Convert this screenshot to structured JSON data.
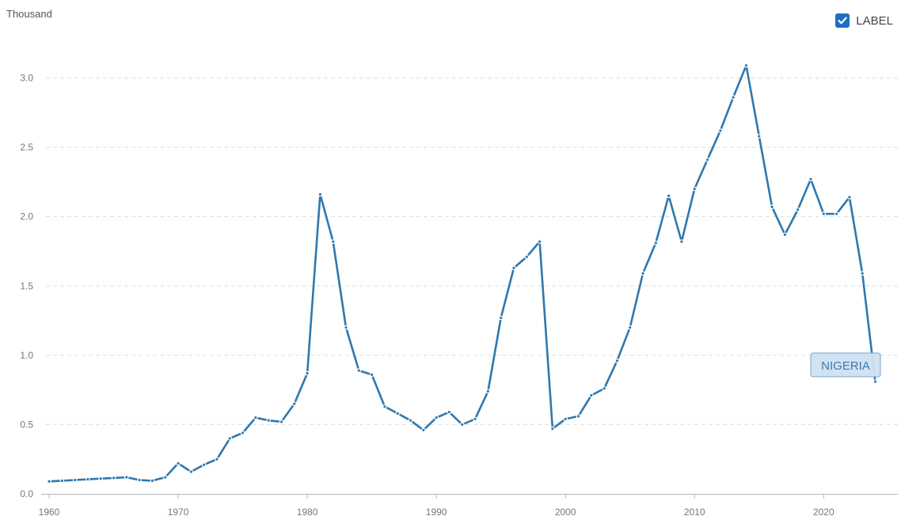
{
  "chart_data": {
    "type": "line",
    "ylabel": "Thousand",
    "ylim": [
      0,
      3.25
    ],
    "xlim": [
      1960,
      2025.5
    ],
    "yticks": [
      "0.0",
      "0.5",
      "1.0",
      "1.5",
      "2.0",
      "2.5",
      "3.0"
    ],
    "xticks": [
      "1960",
      "1970",
      "1980",
      "1990",
      "2000",
      "2010",
      "2020"
    ],
    "grid": "horizontal-dashed",
    "series": [
      {
        "name": "NIGERIA",
        "color": "#2f78ae",
        "x": [
          1960,
          1961,
          1962,
          1963,
          1964,
          1965,
          1966,
          1967,
          1968,
          1969,
          1970,
          1971,
          1972,
          1973,
          1974,
          1975,
          1976,
          1977,
          1978,
          1979,
          1980,
          1981,
          1982,
          1983,
          1984,
          1985,
          1986,
          1987,
          1988,
          1989,
          1990,
          1991,
          1992,
          1993,
          1994,
          1995,
          1996,
          1997,
          1998,
          1999,
          2000,
          2001,
          2002,
          2003,
          2004,
          2005,
          2006,
          2007,
          2008,
          2009,
          2010,
          2011,
          2012,
          2013,
          2014,
          2015,
          2016,
          2017,
          2018,
          2019,
          2020,
          2021,
          2022,
          2023,
          2024
        ],
        "y": [
          0.09,
          0.095,
          0.1,
          0.105,
          0.11,
          0.115,
          0.12,
          0.1,
          0.095,
          0.12,
          0.22,
          0.16,
          0.21,
          0.25,
          0.4,
          0.44,
          0.55,
          0.53,
          0.52,
          0.65,
          0.87,
          2.16,
          1.82,
          1.2,
          0.89,
          0.86,
          0.63,
          0.58,
          0.53,
          0.46,
          0.55,
          0.59,
          0.5,
          0.54,
          0.74,
          1.27,
          1.63,
          1.71,
          1.82,
          0.47,
          0.54,
          0.56,
          0.71,
          0.76,
          0.96,
          1.2,
          1.59,
          1.81,
          2.15,
          1.82,
          2.2,
          2.41,
          2.62,
          2.86,
          3.09,
          2.58,
          2.07,
          1.87,
          2.05,
          2.27,
          2.02,
          2.02,
          2.14,
          1.59,
          0.81
        ]
      }
    ]
  },
  "legend": {
    "label": "LABEL",
    "checked": true
  },
  "callout": {
    "text": "NIGERIA"
  }
}
